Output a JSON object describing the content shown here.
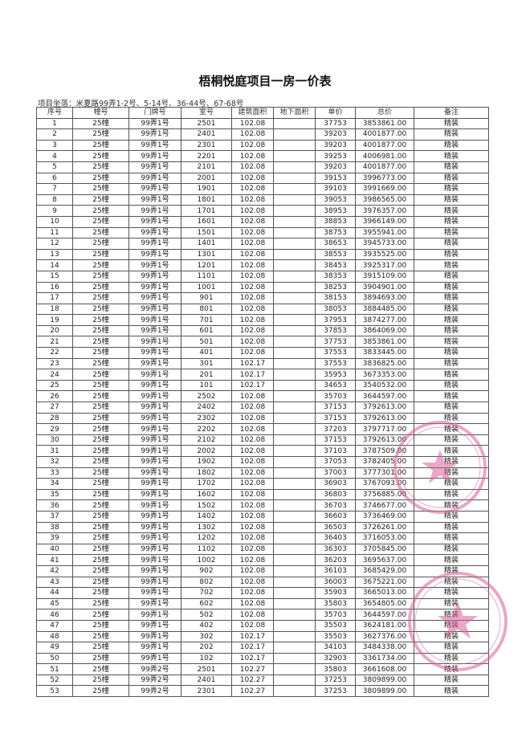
{
  "title": "梧桐悦庭项目一房一价表",
  "subtitle": "项目坐落：米夏路99弄1-2号、5-14号、36-44号、67-68号",
  "columns": [
    "序号",
    "幢号",
    "门牌号",
    "室号",
    "建筑面积",
    "地下面积",
    "单价",
    "总价",
    "备注"
  ],
  "rows": [
    [
      "1",
      "25幢",
      "99弄1号",
      "2501",
      "102.08",
      "",
      "37753",
      "3853861.00",
      "精装"
    ],
    [
      "2",
      "25幢",
      "99弄1号",
      "2401",
      "102.08",
      "",
      "39203",
      "4001877.00",
      "精装"
    ],
    [
      "3",
      "25幢",
      "99弄1号",
      "2301",
      "102.08",
      "",
      "39203",
      "4001877.00",
      "精装"
    ],
    [
      "4",
      "25幢",
      "99弄1号",
      "2201",
      "102.08",
      "",
      "39253",
      "4006981.00",
      "精装"
    ],
    [
      "5",
      "25幢",
      "99弄1号",
      "2101",
      "102.08",
      "",
      "39203",
      "4001877.00",
      "精装"
    ],
    [
      "6",
      "25幢",
      "99弄1号",
      "2001",
      "102.08",
      "",
      "39153",
      "3996773.00",
      "精装"
    ],
    [
      "7",
      "25幢",
      "99弄1号",
      "1901",
      "102.08",
      "",
      "39103",
      "3991669.00",
      "精装"
    ],
    [
      "8",
      "25幢",
      "99弄1号",
      "1801",
      "102.08",
      "",
      "39053",
      "3986565.00",
      "精装"
    ],
    [
      "9",
      "25幢",
      "99弄1号",
      "1701",
      "102.08",
      "",
      "38953",
      "3976357.00",
      "精装"
    ],
    [
      "10",
      "25幢",
      "99弄1号",
      "1601",
      "102.08",
      "",
      "38853",
      "3966149.00",
      "精装"
    ],
    [
      "11",
      "25幢",
      "99弄1号",
      "1501",
      "102.08",
      "",
      "38753",
      "3955941.00",
      "精装"
    ],
    [
      "12",
      "25幢",
      "99弄1号",
      "1401",
      "102.08",
      "",
      "38653",
      "3945733.00",
      "精装"
    ],
    [
      "13",
      "25幢",
      "99弄1号",
      "1301",
      "102.08",
      "",
      "38553",
      "3935525.00",
      "精装"
    ],
    [
      "14",
      "25幢",
      "99弄1号",
      "1201",
      "102.08",
      "",
      "38453",
      "3925317.00",
      "精装"
    ],
    [
      "15",
      "25幢",
      "99弄1号",
      "1101",
      "102.08",
      "",
      "38353",
      "3915109.00",
      "精装"
    ],
    [
      "16",
      "25幢",
      "99弄1号",
      "1001",
      "102.08",
      "",
      "38253",
      "3904901.00",
      "精装"
    ],
    [
      "17",
      "25幢",
      "99弄1号",
      "901",
      "102.08",
      "",
      "38153",
      "3894693.00",
      "精装"
    ],
    [
      "18",
      "25幢",
      "99弄1号",
      "801",
      "102.08",
      "",
      "38053",
      "3884485.00",
      "精装"
    ],
    [
      "19",
      "25幢",
      "99弄1号",
      "701",
      "102.08",
      "",
      "37953",
      "3874277.00",
      "精装"
    ],
    [
      "20",
      "25幢",
      "99弄1号",
      "601",
      "102.08",
      "",
      "37853",
      "3864069.00",
      "精装"
    ],
    [
      "21",
      "25幢",
      "99弄1号",
      "501",
      "102.08",
      "",
      "37753",
      "3853861.00",
      "精装"
    ],
    [
      "22",
      "25幢",
      "99弄1号",
      "401",
      "102.08",
      "",
      "37553",
      "3833445.00",
      "精装"
    ],
    [
      "23",
      "25幢",
      "99弄1号",
      "301",
      "102.17",
      "",
      "37553",
      "3836825.00",
      "精装"
    ],
    [
      "24",
      "25幢",
      "99弄1号",
      "201",
      "102.17",
      "",
      "35953",
      "3673353.00",
      "精装"
    ],
    [
      "25",
      "25幢",
      "99弄1号",
      "101",
      "102.17",
      "",
      "34653",
      "3540532.00",
      "精装"
    ],
    [
      "26",
      "25幢",
      "99弄1号",
      "2502",
      "102.08",
      "",
      "35703",
      "3644597.00",
      "精装"
    ],
    [
      "27",
      "25幢",
      "99弄1号",
      "2402",
      "102.08",
      "",
      "37153",
      "3792613.00",
      "精装"
    ],
    [
      "28",
      "25幢",
      "99弄1号",
      "2302",
      "102.08",
      "",
      "37153",
      "3792613.00",
      "精装"
    ],
    [
      "29",
      "25幢",
      "99弄1号",
      "2202",
      "102.08",
      "",
      "37203",
      "3797717.00",
      "精装"
    ],
    [
      "30",
      "25幢",
      "99弄1号",
      "2102",
      "102.08",
      "",
      "37153",
      "3792613.00",
      "精装"
    ],
    [
      "31",
      "25幢",
      "99弄1号",
      "2002",
      "102.08",
      "",
      "37103",
      "3787509.00",
      "精装"
    ],
    [
      "32",
      "25幢",
      "99弄1号",
      "1902",
      "102.08",
      "",
      "37053",
      "3782405.00",
      "精装"
    ],
    [
      "33",
      "25幢",
      "99弄1号",
      "1802",
      "102.08",
      "",
      "37003",
      "3777301.00",
      "精装"
    ],
    [
      "34",
      "25幢",
      "99弄1号",
      "1702",
      "102.08",
      "",
      "36903",
      "3767093.00",
      "精装"
    ],
    [
      "35",
      "25幢",
      "99弄1号",
      "1602",
      "102.08",
      "",
      "36803",
      "3756885.00",
      "精装"
    ],
    [
      "36",
      "25幢",
      "99弄1号",
      "1502",
      "102.08",
      "",
      "36703",
      "3746677.00",
      "精装"
    ],
    [
      "37",
      "25幢",
      "99弄1号",
      "1402",
      "102.08",
      "",
      "36603",
      "3736469.00",
      "精装"
    ],
    [
      "38",
      "25幢",
      "99弄1号",
      "1302",
      "102.08",
      "",
      "36503",
      "3726261.00",
      "精装"
    ],
    [
      "39",
      "25幢",
      "99弄1号",
      "1202",
      "102.08",
      "",
      "36403",
      "3716053.00",
      "精装"
    ],
    [
      "40",
      "25幢",
      "99弄1号",
      "1102",
      "102.08",
      "",
      "36303",
      "3705845.00",
      "精装"
    ],
    [
      "41",
      "25幢",
      "99弄1号",
      "1002",
      "102.08",
      "",
      "36203",
      "3695637.00",
      "精装"
    ],
    [
      "42",
      "25幢",
      "99弄1号",
      "902",
      "102.08",
      "",
      "36103",
      "3685429.00",
      "精装"
    ],
    [
      "43",
      "25幢",
      "99弄1号",
      "802",
      "102.08",
      "",
      "36003",
      "3675221.00",
      "精装"
    ],
    [
      "44",
      "25幢",
      "99弄1号",
      "702",
      "102.08",
      "",
      "35903",
      "3665013.00",
      "精装"
    ],
    [
      "45",
      "25幢",
      "99弄1号",
      "602",
      "102.08",
      "",
      "35803",
      "3654805.00",
      "精装"
    ],
    [
      "46",
      "25幢",
      "99弄1号",
      "502",
      "102.08",
      "",
      "35703",
      "3644597.00",
      "精装"
    ],
    [
      "47",
      "25幢",
      "99弄1号",
      "402",
      "102.08",
      "",
      "35503",
      "3624181.00",
      "精装"
    ],
    [
      "48",
      "25幢",
      "99弄1号",
      "302",
      "102.17",
      "",
      "35503",
      "3627376.00",
      "精装"
    ],
    [
      "49",
      "25幢",
      "99弄1号",
      "202",
      "102.17",
      "",
      "34103",
      "3484338.00",
      "精装"
    ],
    [
      "50",
      "25幢",
      "99弄1号",
      "102",
      "102.17",
      "",
      "32903",
      "3361734.00",
      "精装"
    ],
    [
      "51",
      "25幢",
      "99弄2号",
      "2501",
      "102.27",
      "",
      "35803",
      "3661608.00",
      "精装"
    ],
    [
      "52",
      "25幢",
      "99弄2号",
      "2401",
      "102.27",
      "",
      "37253",
      "3809899.00",
      "精装"
    ],
    [
      "53",
      "25幢",
      "99弄2号",
      "2301",
      "102.27",
      "",
      "37253",
      "3809899.00",
      "精装"
    ]
  ],
  "stamps": {
    "color": "#d9609a",
    "items": [
      {
        "name": "company-seal-1"
      },
      {
        "name": "company-seal-2"
      }
    ]
  }
}
